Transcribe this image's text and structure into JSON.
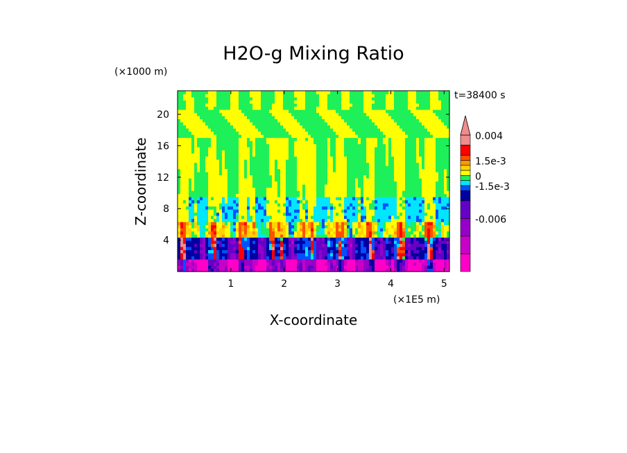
{
  "chart_data": {
    "type": "heatmap",
    "title": "H2O-g Mixing Ratio",
    "time_label": "t=38400 s",
    "xlabel": "X-coordinate",
    "ylabel": "Z-coordinate",
    "x_unit": "(×1E5 m)",
    "y_unit": "(×1000 m)",
    "xlim": [
      0,
      5.1
    ],
    "ylim": [
      0,
      23
    ],
    "x_ticks": [
      1,
      2,
      3,
      4,
      5
    ],
    "y_ticks": [
      4,
      8,
      12,
      16,
      20
    ],
    "colorbar": {
      "levels": [
        {
          "value": -0.009,
          "color": "#ff00c8"
        },
        {
          "value": -0.0075,
          "color": "#c800c8"
        },
        {
          "value": -0.006,
          "color": "#9600c8"
        },
        {
          "value": -0.0045,
          "color": "#6400c8"
        },
        {
          "value": -0.003,
          "color": "#0000a0"
        },
        {
          "value": -0.0015,
          "color": "#0050ff"
        },
        {
          "value": -0.0005,
          "color": "#00e6ff"
        },
        {
          "value": 0,
          "color": "#1ef05a"
        },
        {
          "value": 0.0005,
          "color": "#ffff00"
        },
        {
          "value": 0.001,
          "color": "#ffd200"
        },
        {
          "value": 0.0015,
          "color": "#ff9600"
        },
        {
          "value": 0.002,
          "color": "#ff5000"
        },
        {
          "value": 0.003,
          "color": "#ff0000"
        },
        {
          "value": 0.004,
          "color": "#f08c8c"
        }
      ],
      "labels": [
        {
          "value": 0.004,
          "text": "0.004"
        },
        {
          "value": 0.0015,
          "text": "1.5e-3"
        },
        {
          "value": 0,
          "text": "0"
        },
        {
          "value": -0.0015,
          "text": "-1.5e-3"
        },
        {
          "value": -0.006,
          "text": "-0.006"
        }
      ],
      "extend_top": true
    }
  }
}
